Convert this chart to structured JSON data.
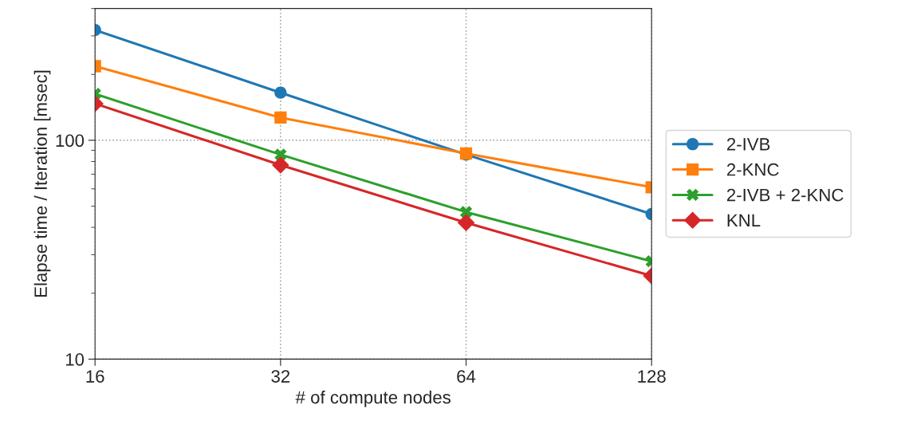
{
  "chart_data": {
    "type": "line",
    "xlabel": "# of compute nodes",
    "ylabel": "Elapse time / Iteration [msec]",
    "x": [
      16,
      32,
      64,
      128
    ],
    "log": "xy",
    "xlim": [
      16,
      128
    ],
    "xticks": [
      16,
      32,
      64,
      128
    ],
    "ylim": [
      10,
      400
    ],
    "yticks": [
      10,
      100
    ],
    "grid": true,
    "legend": "right",
    "line_style": "solid",
    "series": [
      {
        "name": "2-IVB",
        "color": "#1f77b4",
        "marker": "circle",
        "values": [
          319,
          165,
          86,
          46
        ]
      },
      {
        "name": "2-KNC",
        "color": "#ff7f0e",
        "marker": "square",
        "values": [
          218,
          127,
          87,
          61
        ]
      },
      {
        "name": "2-IVB + 2-KNC",
        "color": "#2ca02c",
        "marker": "cross",
        "values": [
          163,
          86,
          47,
          28
        ]
      },
      {
        "name": "KNL",
        "color": "#d62728",
        "marker": "diamond",
        "values": [
          147,
          77,
          42,
          24
        ]
      }
    ]
  }
}
